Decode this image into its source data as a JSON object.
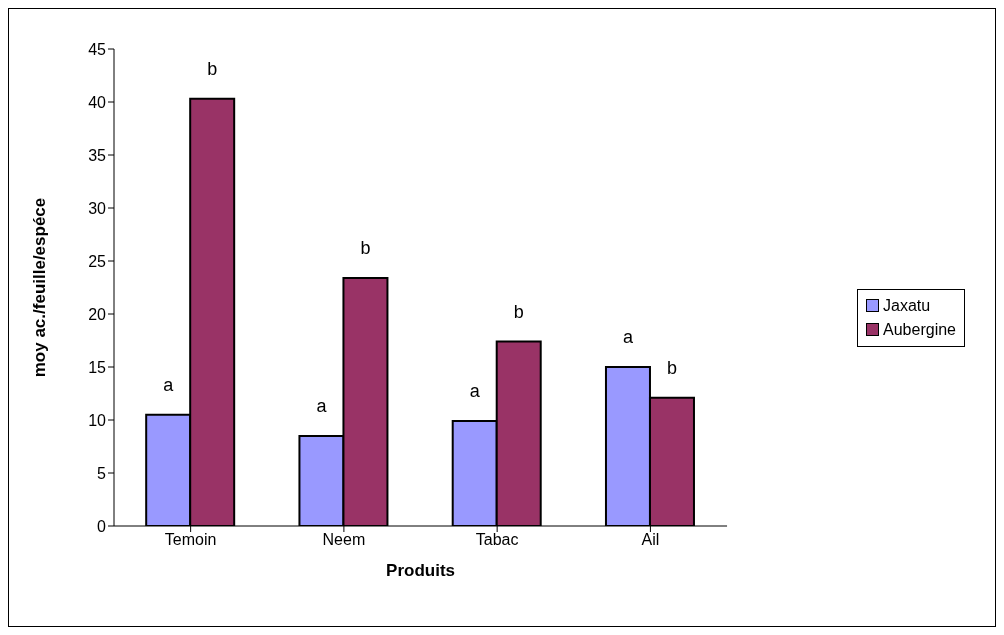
{
  "chart_data": {
    "type": "bar",
    "xlabel": "Produits",
    "ylabel": "moy ac./feuille/espéce",
    "categories": [
      "Temoin",
      "Neem",
      "Tabac",
      "Ail"
    ],
    "series": [
      {
        "name": "Jaxatu",
        "color": "#9999ff",
        "values": [
          10.5,
          8.5,
          9.9,
          15.0
        ],
        "value_labels": [
          "a",
          "a",
          "a",
          "a"
        ]
      },
      {
        "name": "Aubergine",
        "color": "#993366",
        "values": [
          40.3,
          23.4,
          17.4,
          12.1
        ],
        "value_labels": [
          "b",
          "b",
          "b",
          "b"
        ]
      }
    ],
    "ylim": [
      0,
      45
    ],
    "yticks": [
      0,
      5,
      10,
      15,
      20,
      25,
      30,
      35,
      40,
      45
    ],
    "grid": false,
    "legend": "right"
  }
}
